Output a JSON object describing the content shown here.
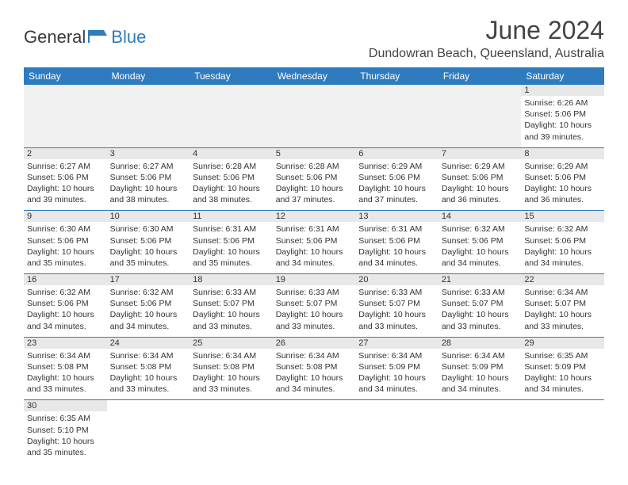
{
  "brand": {
    "part1": "General",
    "part2": "Blue",
    "color_accent": "#2f7bbf",
    "text_color": "#3a3a3a"
  },
  "title": "June 2024",
  "location": "Dundowran Beach, Queensland, Australia",
  "colors": {
    "header_bg": "#2f7bbf",
    "header_text": "#ffffff",
    "daynum_bg": "#e8e8e8",
    "cell_border": "#2f7bbf",
    "empty_bg": "#f0f0f0"
  },
  "day_headers": [
    "Sunday",
    "Monday",
    "Tuesday",
    "Wednesday",
    "Thursday",
    "Friday",
    "Saturday"
  ],
  "weeks": [
    [
      null,
      null,
      null,
      null,
      null,
      null,
      {
        "n": "1",
        "sr": "Sunrise: 6:26 AM",
        "ss": "Sunset: 5:06 PM",
        "d1": "Daylight: 10 hours",
        "d2": "and 39 minutes."
      }
    ],
    [
      {
        "n": "2",
        "sr": "Sunrise: 6:27 AM",
        "ss": "Sunset: 5:06 PM",
        "d1": "Daylight: 10 hours",
        "d2": "and 39 minutes."
      },
      {
        "n": "3",
        "sr": "Sunrise: 6:27 AM",
        "ss": "Sunset: 5:06 PM",
        "d1": "Daylight: 10 hours",
        "d2": "and 38 minutes."
      },
      {
        "n": "4",
        "sr": "Sunrise: 6:28 AM",
        "ss": "Sunset: 5:06 PM",
        "d1": "Daylight: 10 hours",
        "d2": "and 38 minutes."
      },
      {
        "n": "5",
        "sr": "Sunrise: 6:28 AM",
        "ss": "Sunset: 5:06 PM",
        "d1": "Daylight: 10 hours",
        "d2": "and 37 minutes."
      },
      {
        "n": "6",
        "sr": "Sunrise: 6:29 AM",
        "ss": "Sunset: 5:06 PM",
        "d1": "Daylight: 10 hours",
        "d2": "and 37 minutes."
      },
      {
        "n": "7",
        "sr": "Sunrise: 6:29 AM",
        "ss": "Sunset: 5:06 PM",
        "d1": "Daylight: 10 hours",
        "d2": "and 36 minutes."
      },
      {
        "n": "8",
        "sr": "Sunrise: 6:29 AM",
        "ss": "Sunset: 5:06 PM",
        "d1": "Daylight: 10 hours",
        "d2": "and 36 minutes."
      }
    ],
    [
      {
        "n": "9",
        "sr": "Sunrise: 6:30 AM",
        "ss": "Sunset: 5:06 PM",
        "d1": "Daylight: 10 hours",
        "d2": "and 35 minutes."
      },
      {
        "n": "10",
        "sr": "Sunrise: 6:30 AM",
        "ss": "Sunset: 5:06 PM",
        "d1": "Daylight: 10 hours",
        "d2": "and 35 minutes."
      },
      {
        "n": "11",
        "sr": "Sunrise: 6:31 AM",
        "ss": "Sunset: 5:06 PM",
        "d1": "Daylight: 10 hours",
        "d2": "and 35 minutes."
      },
      {
        "n": "12",
        "sr": "Sunrise: 6:31 AM",
        "ss": "Sunset: 5:06 PM",
        "d1": "Daylight: 10 hours",
        "d2": "and 34 minutes."
      },
      {
        "n": "13",
        "sr": "Sunrise: 6:31 AM",
        "ss": "Sunset: 5:06 PM",
        "d1": "Daylight: 10 hours",
        "d2": "and 34 minutes."
      },
      {
        "n": "14",
        "sr": "Sunrise: 6:32 AM",
        "ss": "Sunset: 5:06 PM",
        "d1": "Daylight: 10 hours",
        "d2": "and 34 minutes."
      },
      {
        "n": "15",
        "sr": "Sunrise: 6:32 AM",
        "ss": "Sunset: 5:06 PM",
        "d1": "Daylight: 10 hours",
        "d2": "and 34 minutes."
      }
    ],
    [
      {
        "n": "16",
        "sr": "Sunrise: 6:32 AM",
        "ss": "Sunset: 5:06 PM",
        "d1": "Daylight: 10 hours",
        "d2": "and 34 minutes."
      },
      {
        "n": "17",
        "sr": "Sunrise: 6:32 AM",
        "ss": "Sunset: 5:06 PM",
        "d1": "Daylight: 10 hours",
        "d2": "and 34 minutes."
      },
      {
        "n": "18",
        "sr": "Sunrise: 6:33 AM",
        "ss": "Sunset: 5:07 PM",
        "d1": "Daylight: 10 hours",
        "d2": "and 33 minutes."
      },
      {
        "n": "19",
        "sr": "Sunrise: 6:33 AM",
        "ss": "Sunset: 5:07 PM",
        "d1": "Daylight: 10 hours",
        "d2": "and 33 minutes."
      },
      {
        "n": "20",
        "sr": "Sunrise: 6:33 AM",
        "ss": "Sunset: 5:07 PM",
        "d1": "Daylight: 10 hours",
        "d2": "and 33 minutes."
      },
      {
        "n": "21",
        "sr": "Sunrise: 6:33 AM",
        "ss": "Sunset: 5:07 PM",
        "d1": "Daylight: 10 hours",
        "d2": "and 33 minutes."
      },
      {
        "n": "22",
        "sr": "Sunrise: 6:34 AM",
        "ss": "Sunset: 5:07 PM",
        "d1": "Daylight: 10 hours",
        "d2": "and 33 minutes."
      }
    ],
    [
      {
        "n": "23",
        "sr": "Sunrise: 6:34 AM",
        "ss": "Sunset: 5:08 PM",
        "d1": "Daylight: 10 hours",
        "d2": "and 33 minutes."
      },
      {
        "n": "24",
        "sr": "Sunrise: 6:34 AM",
        "ss": "Sunset: 5:08 PM",
        "d1": "Daylight: 10 hours",
        "d2": "and 33 minutes."
      },
      {
        "n": "25",
        "sr": "Sunrise: 6:34 AM",
        "ss": "Sunset: 5:08 PM",
        "d1": "Daylight: 10 hours",
        "d2": "and 33 minutes."
      },
      {
        "n": "26",
        "sr": "Sunrise: 6:34 AM",
        "ss": "Sunset: 5:08 PM",
        "d1": "Daylight: 10 hours",
        "d2": "and 34 minutes."
      },
      {
        "n": "27",
        "sr": "Sunrise: 6:34 AM",
        "ss": "Sunset: 5:09 PM",
        "d1": "Daylight: 10 hours",
        "d2": "and 34 minutes."
      },
      {
        "n": "28",
        "sr": "Sunrise: 6:34 AM",
        "ss": "Sunset: 5:09 PM",
        "d1": "Daylight: 10 hours",
        "d2": "and 34 minutes."
      },
      {
        "n": "29",
        "sr": "Sunrise: 6:35 AM",
        "ss": "Sunset: 5:09 PM",
        "d1": "Daylight: 10 hours",
        "d2": "and 34 minutes."
      }
    ],
    [
      {
        "n": "30",
        "sr": "Sunrise: 6:35 AM",
        "ss": "Sunset: 5:10 PM",
        "d1": "Daylight: 10 hours",
        "d2": "and 35 minutes."
      },
      null,
      null,
      null,
      null,
      null,
      null
    ]
  ]
}
